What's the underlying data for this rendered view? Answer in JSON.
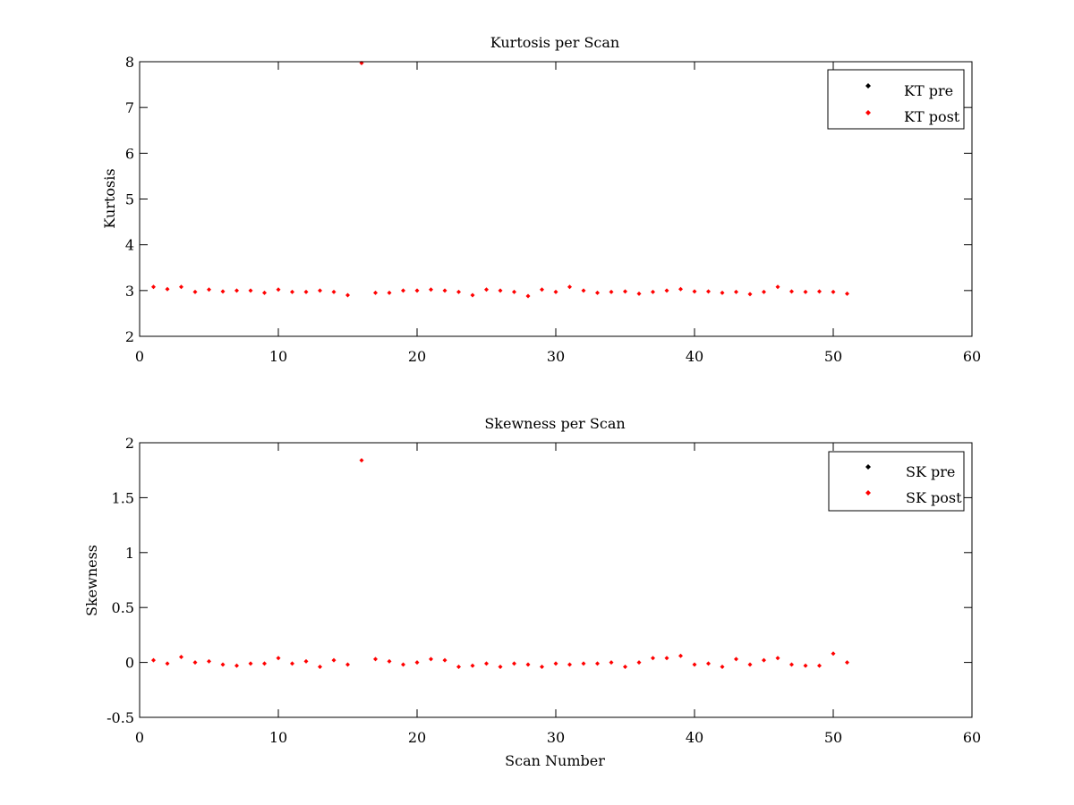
{
  "chart_data": [
    {
      "type": "scatter",
      "title": "Kurtosis per Scan",
      "xlabel": "",
      "ylabel": "Kurtosis",
      "xlim": [
        0,
        60
      ],
      "ylim": [
        2,
        8
      ],
      "xticks": [
        "0",
        "10",
        "20",
        "30",
        "40",
        "50",
        "60"
      ],
      "yticks": [
        "2",
        "3",
        "4",
        "5",
        "6",
        "7",
        "8"
      ],
      "legend_position": "top-right",
      "grid": false,
      "series": [
        {
          "name": "KT pre",
          "color": "#000000",
          "x": [],
          "y": []
        },
        {
          "name": "KT post",
          "color": "#ff0000",
          "x": [
            1,
            2,
            3,
            4,
            5,
            6,
            7,
            8,
            9,
            10,
            11,
            12,
            13,
            14,
            15,
            16,
            17,
            18,
            19,
            20,
            21,
            22,
            23,
            24,
            25,
            26,
            27,
            28,
            29,
            30,
            31,
            32,
            33,
            34,
            35,
            36,
            37,
            38,
            39,
            40,
            41,
            42,
            43,
            44,
            45,
            46,
            47,
            48,
            49,
            50,
            51
          ],
          "y": [
            3.08,
            3.03,
            3.08,
            2.97,
            3.02,
            2.98,
            3.0,
            3.0,
            2.95,
            3.02,
            2.97,
            2.97,
            3.0,
            2.97,
            2.9,
            7.97,
            2.95,
            2.95,
            3.0,
            3.0,
            3.02,
            3.0,
            2.97,
            2.9,
            3.02,
            3.0,
            2.97,
            2.88,
            3.02,
            2.97,
            3.08,
            3.0,
            2.95,
            2.97,
            2.98,
            2.93,
            2.97,
            3.0,
            3.03,
            2.98,
            2.98,
            2.95,
            2.97,
            2.92,
            2.97,
            3.08,
            2.98,
            2.97,
            2.98,
            2.97,
            2.93
          ]
        }
      ]
    },
    {
      "type": "scatter",
      "title": "Skewness per Scan",
      "xlabel": "Scan Number",
      "ylabel": "Skewness",
      "xlim": [
        0,
        60
      ],
      "ylim": [
        -0.5,
        2
      ],
      "xticks": [
        "0",
        "10",
        "20",
        "30",
        "40",
        "50",
        "60"
      ],
      "yticks": [
        "-0.5",
        "0",
        "0.5",
        "1",
        "1.5",
        "2"
      ],
      "legend_position": "top-right",
      "grid": false,
      "series": [
        {
          "name": "SK pre",
          "color": "#000000",
          "x": [],
          "y": []
        },
        {
          "name": "SK post",
          "color": "#ff0000",
          "x": [
            1,
            2,
            3,
            4,
            5,
            6,
            7,
            8,
            9,
            10,
            11,
            12,
            13,
            14,
            15,
            16,
            17,
            18,
            19,
            20,
            21,
            22,
            23,
            24,
            25,
            26,
            27,
            28,
            29,
            30,
            31,
            32,
            33,
            34,
            35,
            36,
            37,
            38,
            39,
            40,
            41,
            42,
            43,
            44,
            45,
            46,
            47,
            48,
            49,
            50,
            51
          ],
          "y": [
            0.02,
            -0.01,
            0.05,
            0.0,
            0.01,
            -0.02,
            -0.03,
            -0.01,
            -0.01,
            0.04,
            -0.01,
            0.01,
            -0.04,
            0.02,
            -0.02,
            1.84,
            0.03,
            0.01,
            -0.02,
            0.0,
            0.03,
            0.02,
            -0.04,
            -0.03,
            -0.01,
            -0.04,
            -0.01,
            -0.02,
            -0.04,
            -0.01,
            -0.02,
            -0.01,
            -0.01,
            0.0,
            -0.04,
            0.0,
            0.04,
            0.04,
            0.06,
            -0.02,
            -0.01,
            -0.04,
            0.03,
            -0.02,
            0.02,
            0.04,
            -0.02,
            -0.03,
            -0.03,
            0.08,
            0.0
          ]
        }
      ]
    }
  ]
}
